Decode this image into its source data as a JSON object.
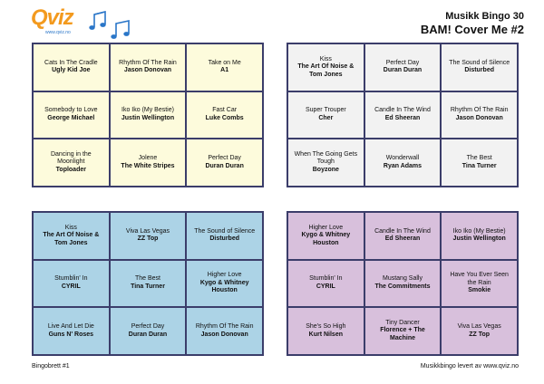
{
  "header": {
    "logo": "Qviz",
    "logo_url": "www.qviz.no",
    "title": "Musikk Bingo 30",
    "subtitle": "BAM! Cover Me #2"
  },
  "cards": [
    {
      "cells": [
        {
          "title": "Cats In The Cradle",
          "artist": "Ugly Kid Joe"
        },
        {
          "title": "Rhythm Of The Rain",
          "artist": "Jason Donovan"
        },
        {
          "title": "Take on Me",
          "artist": "A1"
        },
        {
          "title": "Somebody to Love",
          "artist": "George Michael"
        },
        {
          "title": "Iko Iko (My Bestie)",
          "artist": "Justin Wellington"
        },
        {
          "title": "Fast Car",
          "artist": "Luke Combs"
        },
        {
          "title": "Dancing in the Moonlight",
          "artist": "Toploader"
        },
        {
          "title": "Jolene",
          "artist": "The White Stripes"
        },
        {
          "title": "Perfect Day",
          "artist": "Duran Duran"
        }
      ]
    },
    {
      "cells": [
        {
          "title": "Kiss",
          "artist": "The Art Of Noise & Tom Jones"
        },
        {
          "title": "Perfect Day",
          "artist": "Duran Duran"
        },
        {
          "title": "The Sound of Silence",
          "artist": "Disturbed"
        },
        {
          "title": "Super Trouper",
          "artist": "Cher"
        },
        {
          "title": "Candle In The Wind",
          "artist": "Ed Sheeran"
        },
        {
          "title": "Rhythm Of The Rain",
          "artist": "Jason Donovan"
        },
        {
          "title": "When The Going Gets Tough",
          "artist": "Boyzone"
        },
        {
          "title": "Wonderwall",
          "artist": "Ryan Adams"
        },
        {
          "title": "The Best",
          "artist": "Tina Turner"
        }
      ]
    },
    {
      "cells": [
        {
          "title": "Kiss",
          "artist": "The Art Of Noise & Tom Jones"
        },
        {
          "title": "Viva Las Vegas",
          "artist": "ZZ Top"
        },
        {
          "title": "The Sound of Silence",
          "artist": "Disturbed"
        },
        {
          "title": "Stumblin' In",
          "artist": "CYRIL"
        },
        {
          "title": "The Best",
          "artist": "Tina Turner"
        },
        {
          "title": "Higher Love",
          "artist": "Kygo & Whitney Houston"
        },
        {
          "title": "Live And Let Die",
          "artist": "Guns N' Roses"
        },
        {
          "title": "Perfect Day",
          "artist": "Duran Duran"
        },
        {
          "title": "Rhythm Of The Rain",
          "artist": "Jason Donovan"
        }
      ]
    },
    {
      "cells": [
        {
          "title": "Higher Love",
          "artist": "Kygo & Whitney Houston"
        },
        {
          "title": "Candle In The Wind",
          "artist": "Ed Sheeran"
        },
        {
          "title": "Iko Iko (My Bestie)",
          "artist": "Justin Wellington"
        },
        {
          "title": "Stumblin' In",
          "artist": "CYRIL"
        },
        {
          "title": "Mustang Sally",
          "artist": "The Commitments"
        },
        {
          "title": "Have You Ever Seen the Rain",
          "artist": "Smokie"
        },
        {
          "title": "She's So High",
          "artist": "Kurt Nilsen"
        },
        {
          "title": "Tiny Dancer",
          "artist": "Florence + The Machine"
        },
        {
          "title": "Viva Las Vegas",
          "artist": "ZZ Top"
        }
      ]
    }
  ],
  "footer": {
    "left": "Bingobrett #1",
    "right": "Musikkbingo levert av www.qviz.no"
  }
}
